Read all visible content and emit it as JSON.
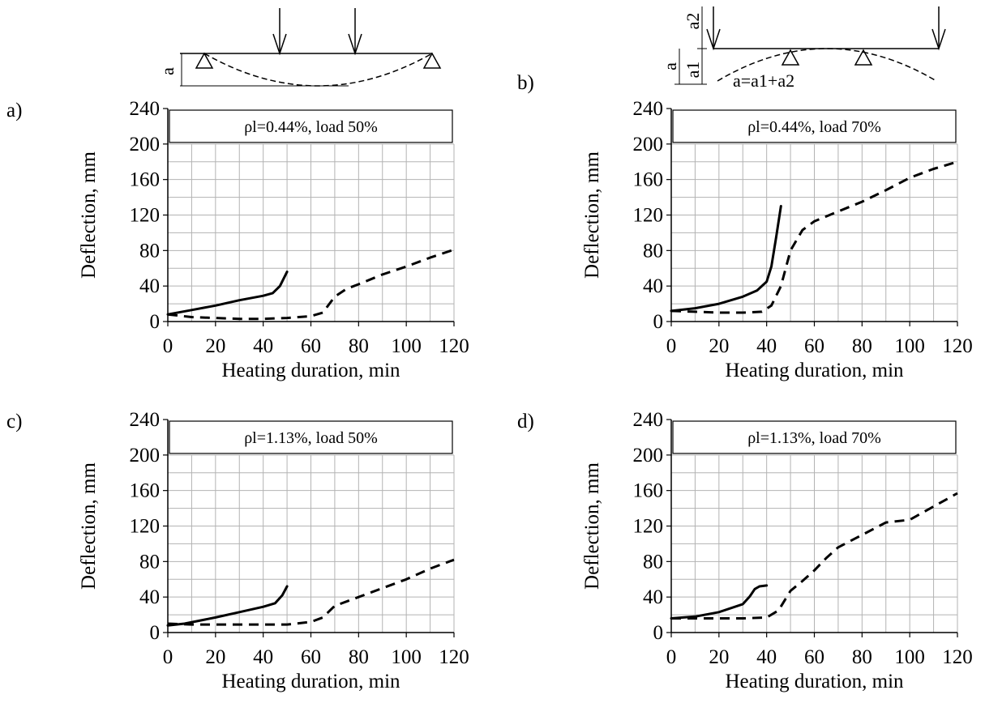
{
  "diagrams": {
    "simply_supported": {
      "deflection_symbol": "a"
    },
    "continuous": {
      "deflection_symbol": "a",
      "part1_symbol": "a1",
      "part2_symbol": "a2",
      "formula": "a=a1+a2"
    }
  },
  "chart_data": [
    {
      "type": "line",
      "panel": "a)",
      "legend_text": "ρl=0.44%, load 50%",
      "xlabel": "Heating duration, min",
      "ylabel": "Deflection, mm",
      "xlim": [
        0,
        120
      ],
      "ylim": [
        0,
        240
      ],
      "xticks": [
        0,
        20,
        40,
        60,
        80,
        100,
        120
      ],
      "yticks": [
        0,
        40,
        80,
        120,
        160,
        200,
        240
      ],
      "grid": true,
      "series": [
        {
          "style": "solid",
          "points": [
            [
              0,
              8
            ],
            [
              10,
              13
            ],
            [
              20,
              18
            ],
            [
              30,
              24
            ],
            [
              40,
              29
            ],
            [
              44,
              32
            ],
            [
              47,
              40
            ],
            [
              50,
              56
            ]
          ]
        },
        {
          "style": "dashed",
          "points": [
            [
              0,
              8
            ],
            [
              10,
              5
            ],
            [
              20,
              4
            ],
            [
              30,
              3
            ],
            [
              40,
              3
            ],
            [
              50,
              4
            ],
            [
              60,
              6
            ],
            [
              65,
              10
            ],
            [
              70,
              28
            ],
            [
              75,
              37
            ],
            [
              80,
              42
            ],
            [
              90,
              53
            ],
            [
              100,
              62
            ],
            [
              110,
              72
            ],
            [
              120,
              81
            ]
          ]
        }
      ]
    },
    {
      "type": "line",
      "panel": "b)",
      "legend_text": "ρl=0.44%, load 70%",
      "xlabel": "Heating duration, min",
      "ylabel": "Deflection, mm",
      "xlim": [
        0,
        120
      ],
      "ylim": [
        0,
        240
      ],
      "xticks": [
        0,
        20,
        40,
        60,
        80,
        100,
        120
      ],
      "yticks": [
        0,
        40,
        80,
        120,
        160,
        200,
        240
      ],
      "grid": true,
      "series": [
        {
          "style": "solid",
          "points": [
            [
              0,
              12
            ],
            [
              10,
              15
            ],
            [
              20,
              20
            ],
            [
              30,
              28
            ],
            [
              36,
              35
            ],
            [
              40,
              45
            ],
            [
              42,
              62
            ],
            [
              44,
              95
            ],
            [
              46,
              130
            ]
          ]
        },
        {
          "style": "dashed",
          "points": [
            [
              0,
              12
            ],
            [
              10,
              11
            ],
            [
              20,
              10
            ],
            [
              30,
              10
            ],
            [
              38,
              11
            ],
            [
              42,
              18
            ],
            [
              46,
              40
            ],
            [
              50,
              80
            ],
            [
              55,
              103
            ],
            [
              60,
              113
            ],
            [
              70,
              124
            ],
            [
              80,
              135
            ],
            [
              90,
              148
            ],
            [
              100,
              162
            ],
            [
              110,
              172
            ],
            [
              120,
              180
            ]
          ]
        }
      ]
    },
    {
      "type": "line",
      "panel": "c)",
      "legend_text": "ρl=1.13%, load 50%",
      "xlabel": "Heating duration, min",
      "ylabel": "Deflection, mm",
      "xlim": [
        0,
        120
      ],
      "ylim": [
        0,
        240
      ],
      "xticks": [
        0,
        20,
        40,
        60,
        80,
        100,
        120
      ],
      "yticks": [
        0,
        40,
        80,
        120,
        160,
        200,
        240
      ],
      "grid": true,
      "series": [
        {
          "style": "solid",
          "points": [
            [
              0,
              8
            ],
            [
              7,
              10
            ],
            [
              20,
              17
            ],
            [
              30,
              23
            ],
            [
              40,
              29
            ],
            [
              45,
              33
            ],
            [
              48,
              42
            ],
            [
              50,
              52
            ]
          ]
        },
        {
          "style": "dashed",
          "points": [
            [
              0,
              10
            ],
            [
              10,
              9
            ],
            [
              20,
              9
            ],
            [
              30,
              9
            ],
            [
              40,
              9
            ],
            [
              50,
              9
            ],
            [
              60,
              12
            ],
            [
              65,
              17
            ],
            [
              70,
              30
            ],
            [
              80,
              40
            ],
            [
              90,
              50
            ],
            [
              100,
              60
            ],
            [
              110,
              72
            ],
            [
              120,
              82
            ]
          ]
        }
      ]
    },
    {
      "type": "line",
      "panel": "d)",
      "legend_text": "ρl=1.13%, load 70%",
      "xlabel": "Heating duration, min",
      "ylabel": "Deflection, mm",
      "xlim": [
        0,
        120
      ],
      "ylim": [
        0,
        240
      ],
      "xticks": [
        0,
        20,
        40,
        60,
        80,
        100,
        120
      ],
      "yticks": [
        0,
        40,
        80,
        120,
        160,
        200,
        240
      ],
      "grid": true,
      "series": [
        {
          "style": "solid",
          "points": [
            [
              0,
              16
            ],
            [
              10,
              18
            ],
            [
              20,
              23
            ],
            [
              30,
              32
            ],
            [
              33,
              41
            ],
            [
              35,
              49
            ],
            [
              37,
              52
            ],
            [
              40,
              53
            ]
          ]
        },
        {
          "style": "dashed",
          "points": [
            [
              0,
              16
            ],
            [
              10,
              16
            ],
            [
              20,
              16
            ],
            [
              30,
              16
            ],
            [
              40,
              17
            ],
            [
              45,
              25
            ],
            [
              50,
              47
            ],
            [
              55,
              58
            ],
            [
              60,
              70
            ],
            [
              65,
              84
            ],
            [
              70,
              96
            ],
            [
              80,
              110
            ],
            [
              90,
              124
            ],
            [
              100,
              127
            ],
            [
              110,
              142
            ],
            [
              120,
              157
            ]
          ]
        }
      ]
    }
  ]
}
